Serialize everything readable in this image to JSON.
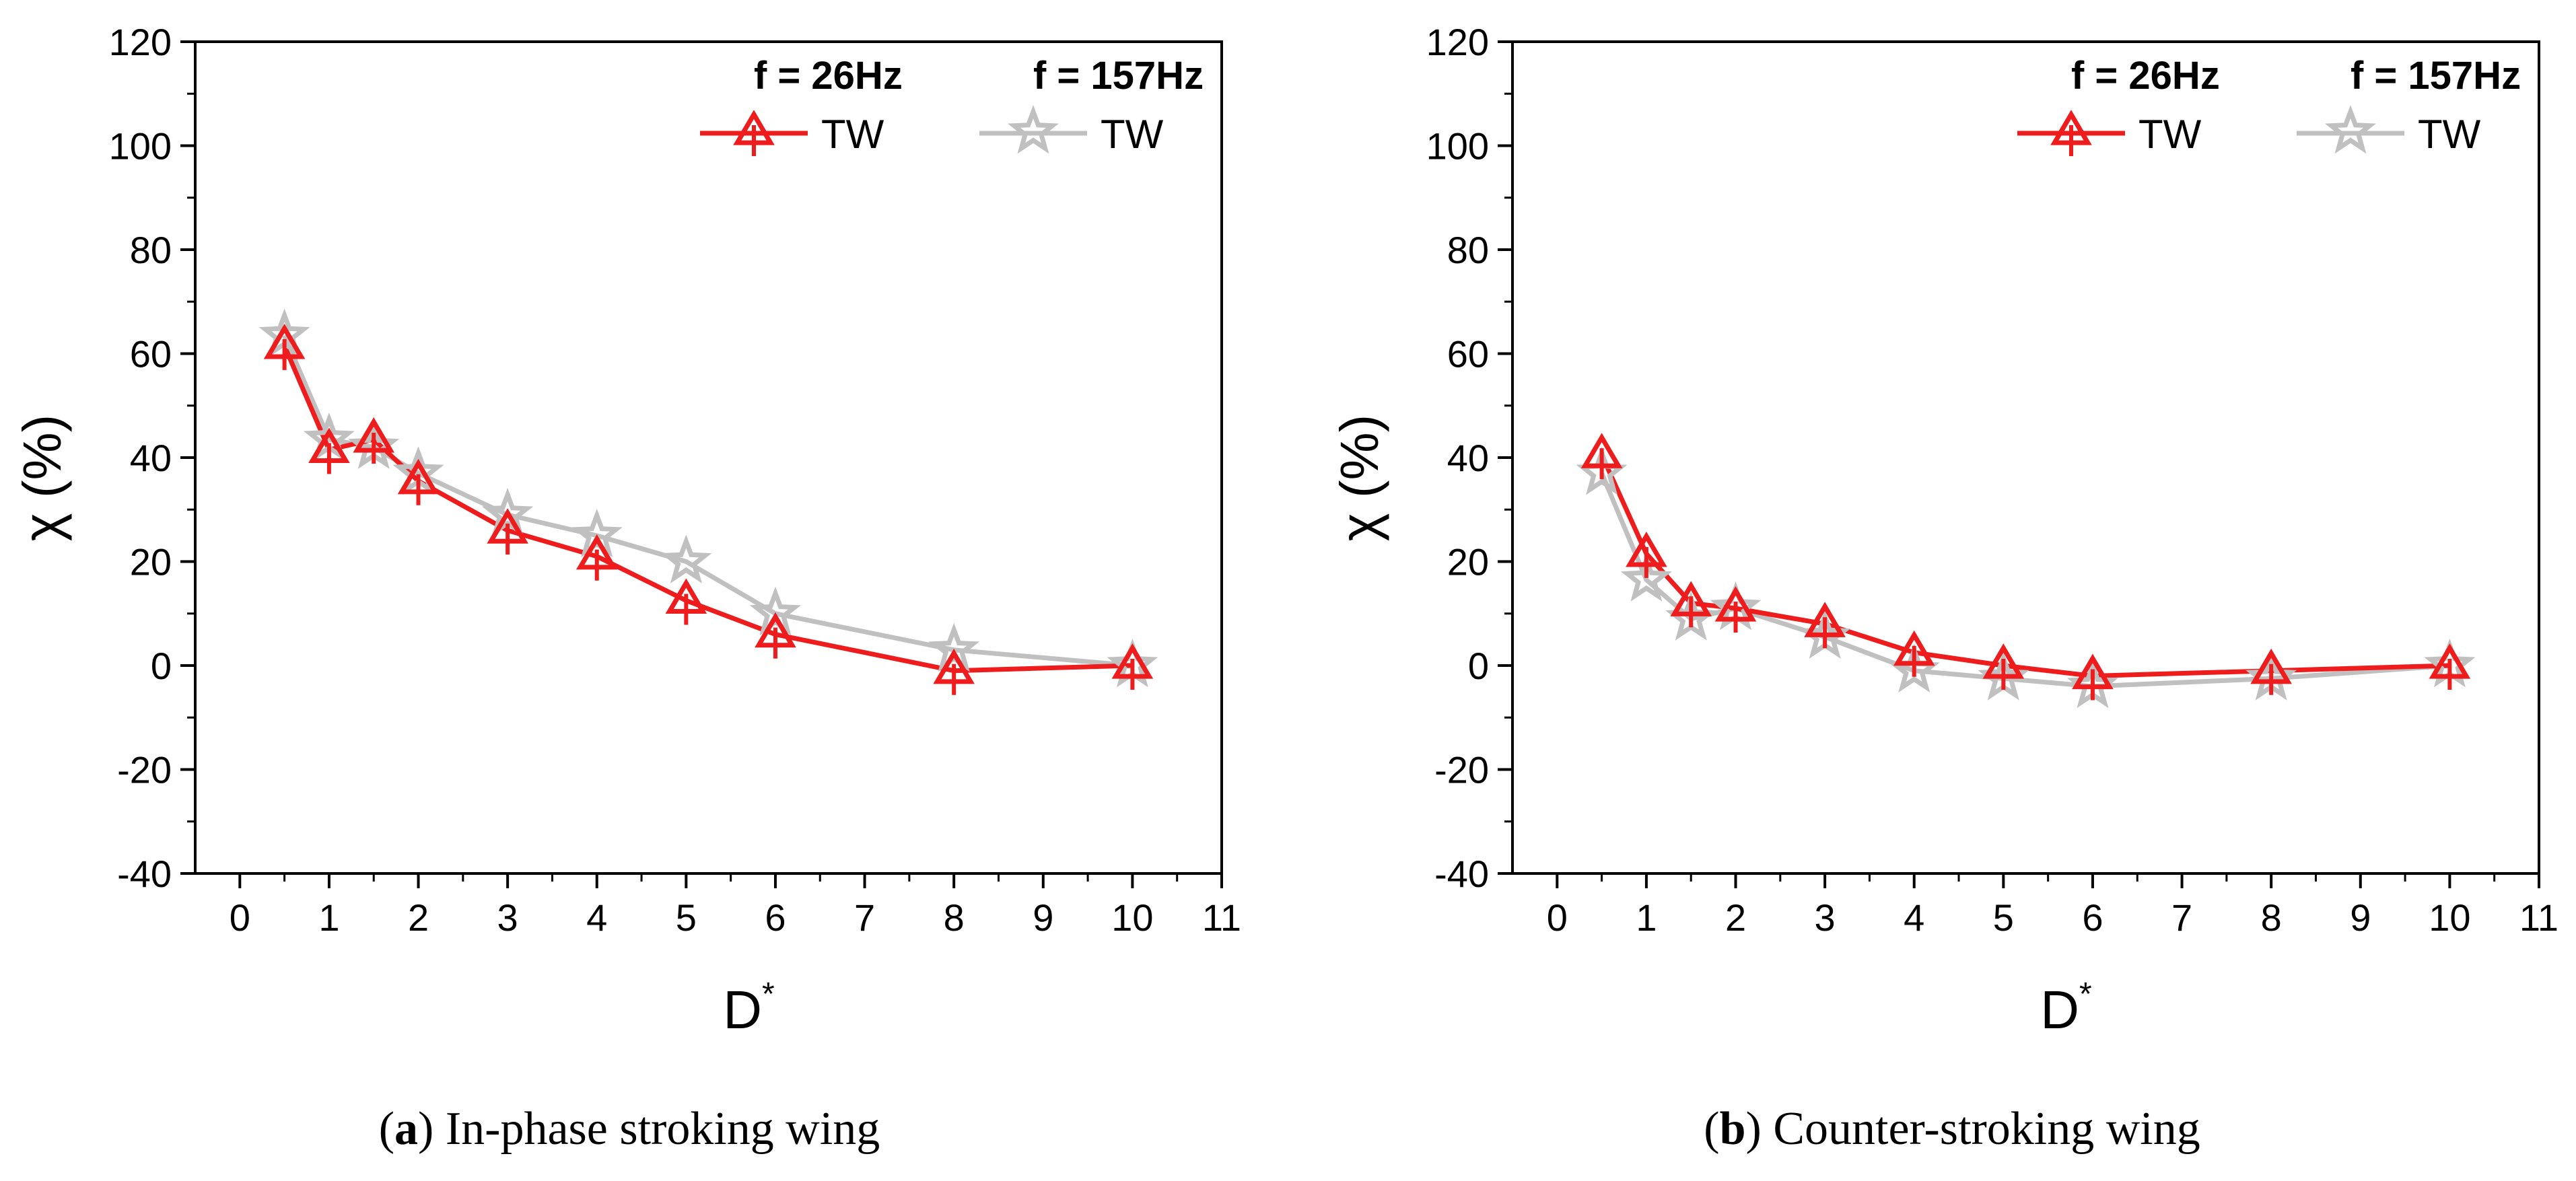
{
  "chart_data": [
    {
      "type": "line",
      "panel_label": "a",
      "caption": "In-phase stroking wing",
      "xlabel": "D",
      "xlabel_superscript": "*",
      "ylabel": "χ (%)",
      "xlim": [
        -0.5,
        11
      ],
      "ylim": [
        -40,
        120
      ],
      "xticks": [
        "0",
        "1",
        "2",
        "3",
        "4",
        "5",
        "6",
        "7",
        "8",
        "9",
        "10",
        "11"
      ],
      "yticks": [
        "-40",
        "-20",
        "0",
        "20",
        "40",
        "60",
        "80",
        "100",
        "120"
      ],
      "legend_position": "top-right",
      "series": [
        {
          "name": "TW",
          "header": "f = 26Hz",
          "color": "#ee1c1c",
          "marker": "triangle",
          "x": [
            0.5,
            1,
            1.5,
            2,
            3,
            4,
            5,
            6,
            8,
            10
          ],
          "y": [
            61.5,
            41.5,
            43.5,
            35.5,
            26,
            21,
            12.5,
            6,
            -1,
            0
          ]
        },
        {
          "name": "TW",
          "header": "f = 157Hz",
          "color": "#c0c0c0",
          "marker": "star",
          "x": [
            0.5,
            1,
            1.5,
            2,
            3,
            4,
            5,
            6,
            8,
            10
          ],
          "y": [
            63.5,
            43.5,
            42,
            37,
            29,
            25,
            20,
            10,
            3,
            0
          ]
        }
      ]
    },
    {
      "type": "line",
      "panel_label": "b",
      "caption": "Counter-stroking wing",
      "xlabel": "D",
      "xlabel_superscript": "*",
      "ylabel": "χ (%)",
      "xlim": [
        -0.5,
        11
      ],
      "ylim": [
        -40,
        120
      ],
      "xticks": [
        "0",
        "1",
        "2",
        "3",
        "4",
        "5",
        "6",
        "7",
        "8",
        "9",
        "10",
        "11"
      ],
      "yticks": [
        "-40",
        "-20",
        "0",
        "20",
        "40",
        "60",
        "80",
        "100",
        "120"
      ],
      "legend_position": "top-right",
      "series": [
        {
          "name": "TW",
          "header": "f = 26Hz",
          "color": "#ee1c1c",
          "marker": "triangle",
          "x": [
            0.5,
            1,
            1.5,
            2,
            3,
            4,
            5,
            6,
            8,
            10
          ],
          "y": [
            40.5,
            21.5,
            12,
            11,
            8,
            2.5,
            0,
            -2,
            -1,
            0
          ]
        },
        {
          "name": "TW",
          "header": "f = 157Hz",
          "color": "#c0c0c0",
          "marker": "star",
          "x": [
            0.5,
            1,
            1.5,
            2,
            3,
            4,
            5,
            6,
            8,
            10
          ],
          "y": [
            37,
            16.5,
            9,
            11,
            5.5,
            -1,
            -2.5,
            -4,
            -2.5,
            0
          ]
        }
      ]
    }
  ]
}
